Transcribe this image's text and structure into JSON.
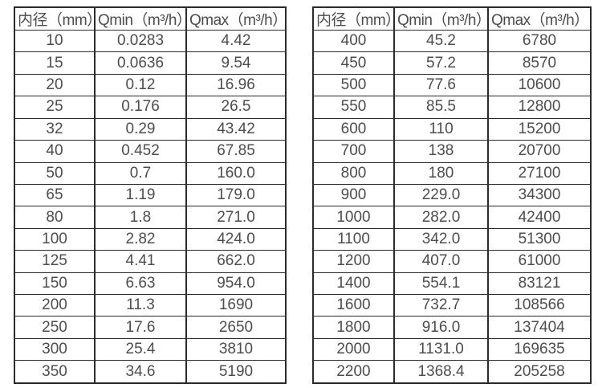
{
  "page": {
    "background": "#ffffff",
    "text_color": "#4d4d4d",
    "border_color": "#2b2b2b"
  },
  "tables": [
    {
      "headers": [
        "内径（mm）",
        "Qmin（m³/h）",
        "Qmax（m³/h）"
      ],
      "rows": [
        [
          "10",
          "0.0283",
          "4.42"
        ],
        [
          "15",
          "0.0636",
          "9.54"
        ],
        [
          "20",
          "0.12",
          "16.96"
        ],
        [
          "25",
          "0.176",
          "26.5"
        ],
        [
          "32",
          "0.29",
          "43.42"
        ],
        [
          "40",
          "0.452",
          "67.85"
        ],
        [
          "50",
          "0.7",
          "160.0"
        ],
        [
          "65",
          "1.19",
          "179.0"
        ],
        [
          "80",
          "1.8",
          "271.0"
        ],
        [
          "100",
          "2.82",
          "424.0"
        ],
        [
          "125",
          "4.41",
          "662.0"
        ],
        [
          "150",
          "6.63",
          "954.0"
        ],
        [
          "200",
          "11.3",
          "1690"
        ],
        [
          "250",
          "17.6",
          "2650"
        ],
        [
          "300",
          "25.4",
          "3810"
        ],
        [
          "350",
          "34.6",
          "5190"
        ]
      ]
    },
    {
      "headers": [
        "内径（mm）",
        "Qmin（m³/h）",
        "Qmax（m³/h）"
      ],
      "rows": [
        [
          "400",
          "45.2",
          "6780"
        ],
        [
          "450",
          "57.2",
          "8570"
        ],
        [
          "500",
          "77.6",
          "10600"
        ],
        [
          "550",
          "85.5",
          "12800"
        ],
        [
          "600",
          "110",
          "15200"
        ],
        [
          "700",
          "138",
          "20700"
        ],
        [
          "800",
          "180",
          "27100"
        ],
        [
          "900",
          "229.0",
          "34300"
        ],
        [
          "1000",
          "282.0",
          "42400"
        ],
        [
          "1100",
          "342.0",
          "51300"
        ],
        [
          "1200",
          "407.0",
          "61000"
        ],
        [
          "1400",
          "554.1",
          "83121"
        ],
        [
          "1600",
          "732.7",
          "108566"
        ],
        [
          "1800",
          "916.0",
          "137404"
        ],
        [
          "2000",
          "1131.0",
          "169635"
        ],
        [
          "2200",
          "1368.4",
          "205258"
        ]
      ]
    }
  ]
}
